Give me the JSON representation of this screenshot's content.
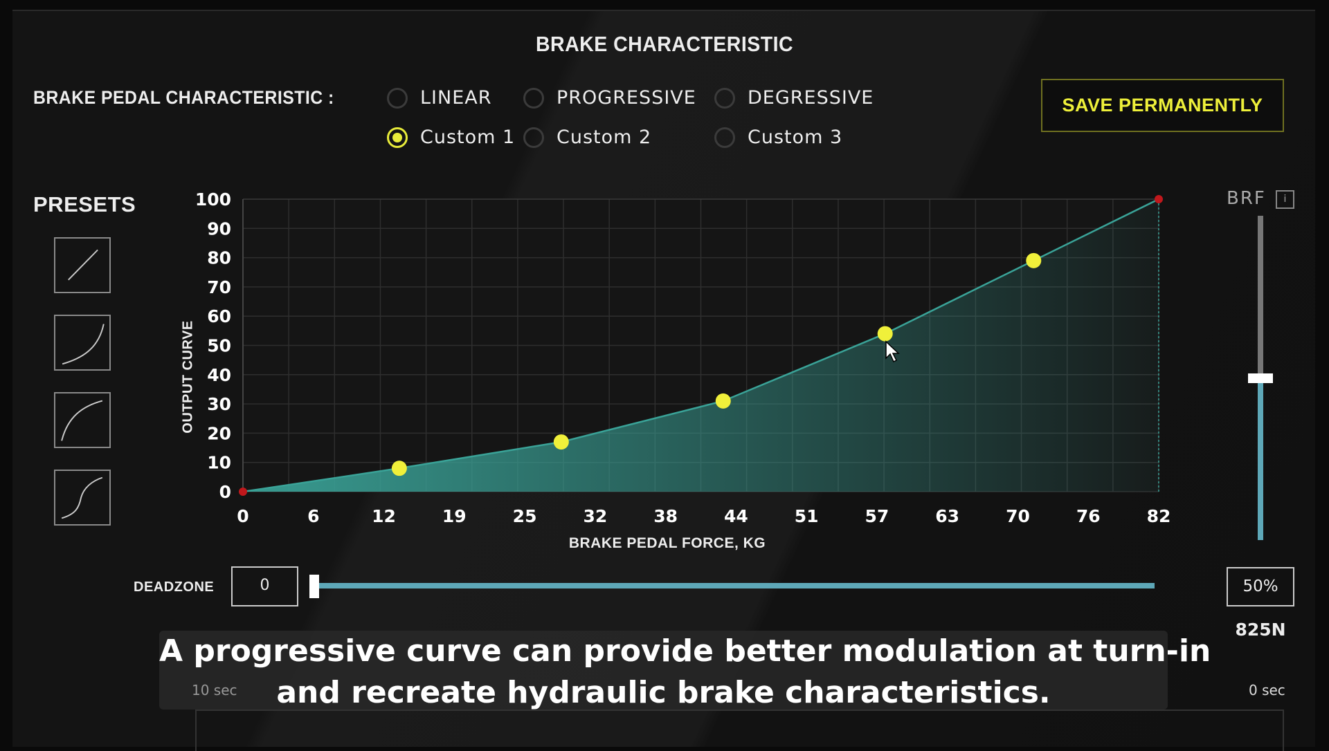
{
  "title": "BRAKE CHARACTERISTIC",
  "pedal_characteristic": {
    "label": "BRAKE PEDAL CHARACTERISTIC :",
    "options": [
      {
        "label": "LINEAR",
        "selected": false
      },
      {
        "label": "PROGRESSIVE",
        "selected": false
      },
      {
        "label": "DEGRESSIVE",
        "selected": false
      },
      {
        "label": "Custom 1",
        "selected": true
      },
      {
        "label": "Custom 2",
        "selected": false
      },
      {
        "label": "Custom 3",
        "selected": false
      }
    ]
  },
  "save_label": "SAVE PERMANENTLY",
  "presets": {
    "label": "PRESETS",
    "items": [
      "linear-preset-icon",
      "progressive-preset-icon",
      "degressive-preset-icon",
      "s-curve-preset-icon"
    ]
  },
  "colors": {
    "accent": "#e8ec3a",
    "curve": "#3aa398",
    "point": "#f0f03a",
    "endpoint": "#c0181c",
    "slider": "#5ea8b8"
  },
  "chart_data": {
    "type": "area",
    "xlabel": "BRAKE PEDAL FORCE, KG",
    "ylabel": "OUTPUT CURVE",
    "xlim": [
      0,
      82
    ],
    "ylim": [
      0,
      100
    ],
    "x_ticks": [
      "0",
      "6",
      "12",
      "19",
      "25",
      "32",
      "38",
      "44",
      "51",
      "57",
      "63",
      "70",
      "76",
      "82"
    ],
    "y_ticks": [
      "0",
      "10",
      "20",
      "30",
      "40",
      "50",
      "60",
      "70",
      "80",
      "90",
      "100"
    ],
    "grid": true,
    "points": [
      {
        "x": 0,
        "y": 0,
        "kind": "endpoint"
      },
      {
        "x": 14,
        "y": 8,
        "kind": "handle"
      },
      {
        "x": 28.5,
        "y": 17,
        "kind": "handle"
      },
      {
        "x": 43,
        "y": 31,
        "kind": "handle"
      },
      {
        "x": 57.5,
        "y": 54,
        "kind": "handle"
      },
      {
        "x": 70.8,
        "y": 79,
        "kind": "handle"
      },
      {
        "x": 82,
        "y": 100,
        "kind": "endpoint"
      }
    ]
  },
  "brf": {
    "label": "BRF",
    "info": "i",
    "value_percent": 50,
    "value_label": "50%",
    "force_label": "825N"
  },
  "deadzone": {
    "label": "DEADZONE",
    "value": "0",
    "fraction": 0
  },
  "timeline": {
    "left_label": "10 sec",
    "right_label": "0 sec"
  },
  "subtitle": {
    "line1": "A progressive curve can provide better modulation at turn-in",
    "line2": "and recreate hydraulic brake characteristics."
  }
}
